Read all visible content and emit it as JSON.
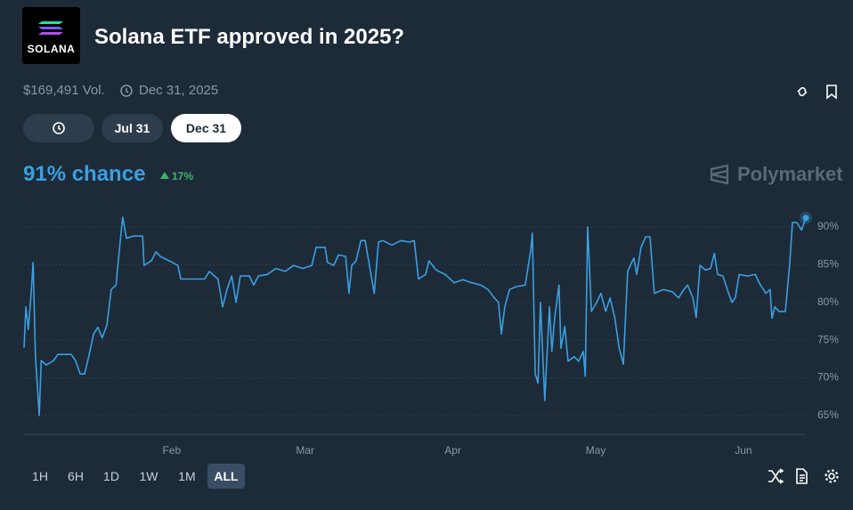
{
  "header": {
    "logo": "SOLANA",
    "title": "Solana ETF approved in 2025?",
    "volume": "$169,491 Vol.",
    "end_date": "Dec 31, 2025"
  },
  "date_tabs": [
    "Jul 31",
    "Dec 31"
  ],
  "chance": {
    "text": "91% chance",
    "change": "17%"
  },
  "brand": "Polymarket",
  "range_buttons": [
    "1H",
    "6H",
    "1D",
    "1W",
    "1M",
    "ALL"
  ],
  "chart_data": {
    "type": "line",
    "color": "#3b9fe0",
    "grid": true,
    "xlim": [
      0,
      164.1
    ],
    "xticks": [
      {
        "value": 31,
        "label": "Feb"
      },
      {
        "value": 59,
        "label": "Mar"
      },
      {
        "value": 90,
        "label": "Apr"
      },
      {
        "value": 120,
        "label": "May"
      },
      {
        "value": 151,
        "label": "Jun"
      }
    ],
    "ylim": [
      62.5,
      93
    ],
    "yticks": [
      {
        "value": 65,
        "label": "65%"
      },
      {
        "value": 70,
        "label": "70%"
      },
      {
        "value": 75,
        "label": "75%"
      },
      {
        "value": 80,
        "label": "80%"
      },
      {
        "value": 85,
        "label": "85%"
      },
      {
        "value": 90,
        "label": "90%"
      }
    ],
    "x": [
      0,
      0.4,
      0.9,
      1.5,
      1.9,
      2.4,
      3.2,
      3.6,
      4.7,
      6.2,
      7.1,
      9.9,
      10.8,
      11.8,
      12.7,
      13.6,
      14.6,
      15.5,
      16.4,
      17.4,
      18.3,
      19.3,
      20.2,
      20.7,
      21.5,
      23,
      24.9,
      25.2,
      26.7,
      27.7,
      28.6,
      30.5,
      32.3,
      32.9,
      35.1,
      37.9,
      38.9,
      40.7,
      41.7,
      42.6,
      43.6,
      44.5,
      45.4,
      47.3,
      48.2,
      49.2,
      51,
      52.9,
      54.8,
      56.6,
      58.5,
      60.4,
      61.3,
      63.2,
      63.7,
      65,
      66,
      67.5,
      68.2,
      68.8,
      69.7,
      70.7,
      71.6,
      72.5,
      73.5,
      74.4,
      75.3,
      77.2,
      79.1,
      80.9,
      81.9,
      82.8,
      84.3,
      85,
      86.5,
      88.4,
      90.3,
      92.1,
      94,
      95.9,
      97.4,
      98.7,
      99.6,
      100.2,
      100.9,
      101.9,
      103.4,
      105.2,
      106.4,
      106.7,
      107.3,
      107.9,
      108.4,
      109.3,
      110.3,
      110.8,
      111.4,
      112.3,
      112.7,
      113.5,
      114.2,
      115.5,
      116.4,
      117.4,
      117.8,
      118.3,
      119.1,
      120.2,
      121.1,
      122.1,
      123,
      124,
      124.9,
      125.8,
      126.7,
      128,
      128.6,
      129.5,
      130.5,
      131.4,
      132.3,
      134.2,
      136.1,
      137.4,
      138.5,
      139.3,
      140.4,
      141.1,
      141.9,
      143,
      144.1,
      144.9,
      145.6,
      146.7,
      147.9,
      148.6,
      149.3,
      150.1,
      151.9,
      153.5,
      154.4,
      155.7,
      156.6,
      157,
      157.6,
      158.5,
      159.8,
      160.7,
      161.3,
      162.2,
      163.2,
      164.1
    ],
    "values": [
      74,
      79.4,
      76.4,
      81.2,
      85.3,
      72.9,
      65,
      72.3,
      71.7,
      72.3,
      73.1,
      73.1,
      72.3,
      70.5,
      70.5,
      72.9,
      75.8,
      76.7,
      75.3,
      77,
      81.7,
      82.3,
      88.2,
      91.3,
      88.5,
      88.8,
      88.8,
      84.9,
      85.5,
      86.7,
      86.1,
      85.5,
      84.9,
      83.1,
      83.1,
      83.1,
      84.1,
      83.1,
      79.4,
      81.7,
      83.5,
      80,
      83.5,
      83.5,
      82.3,
      83.5,
      83.7,
      84.5,
      84.1,
      84.9,
      84.5,
      84.9,
      87.3,
      87.3,
      85.3,
      84.9,
      86.3,
      86.1,
      81.2,
      84.9,
      85.5,
      88.2,
      88.2,
      84.9,
      81.2,
      88,
      88.2,
      87.6,
      88.2,
      88,
      88.2,
      83.1,
      83.7,
      85.5,
      84.3,
      83.7,
      82.6,
      83,
      82.6,
      82.3,
      81.7,
      80.6,
      80,
      75.8,
      79.4,
      81.7,
      82.1,
      82.3,
      87.1,
      89.2,
      70.5,
      69.3,
      80,
      67,
      79.4,
      73.5,
      78,
      82.3,
      73.9,
      76.8,
      72.2,
      72.8,
      72.2,
      73.5,
      70.2,
      90,
      78.8,
      80,
      81.2,
      78.8,
      80.6,
      78,
      74,
      71.8,
      84.1,
      85.9,
      83.7,
      87.3,
      88.7,
      88.7,
      81.2,
      81.7,
      81.4,
      80.6,
      81.7,
      82.3,
      80.6,
      78,
      84.9,
      84.3,
      84.5,
      86.5,
      83.7,
      83.5,
      81.2,
      80,
      80.6,
      83.7,
      83.5,
      83.7,
      82.5,
      81.2,
      81.7,
      77.9,
      79.4,
      78.8,
      78.8,
      84.9,
      90.6,
      90.6,
      89.6,
      91.2
    ]
  }
}
